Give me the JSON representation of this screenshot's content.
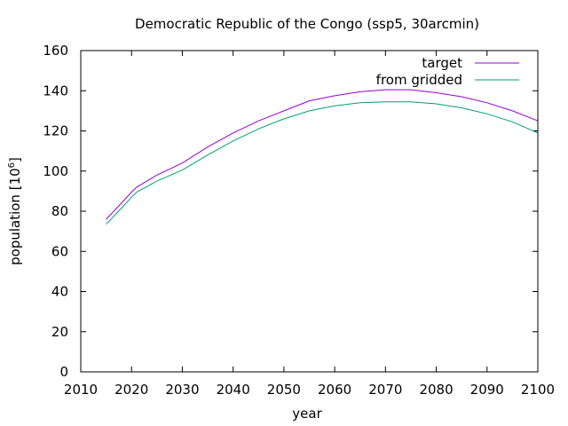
{
  "chart_data": {
    "type": "line",
    "title": "Democratic Republic of the Congo (ssp5, 30arcmin)",
    "xlabel": "year",
    "ylabel": "population [10",
    "ylabel_sup": "6",
    "ylabel_tail": "]",
    "xlim": [
      2010,
      2100
    ],
    "ylim": [
      0,
      160
    ],
    "xticks": [
      2010,
      2020,
      2030,
      2040,
      2050,
      2060,
      2070,
      2080,
      2090,
      2100
    ],
    "yticks": [
      0,
      20,
      40,
      60,
      80,
      100,
      120,
      140,
      160
    ],
    "grid": false,
    "legend": "top-right",
    "series": [
      {
        "name": "target",
        "color": "#9400d3",
        "x": [
          2015,
          2018,
          2020,
          2021,
          2025,
          2030,
          2035,
          2040,
          2045,
          2050,
          2055,
          2060,
          2065,
          2070,
          2075,
          2080,
          2085,
          2090,
          2095,
          2100
        ],
        "y": [
          76,
          84,
          89.5,
          92,
          98,
          104,
          112,
          119,
          125,
          130,
          135,
          137.5,
          139.5,
          140.5,
          140.5,
          139,
          137,
          134,
          130,
          125
        ]
      },
      {
        "name": "from gridded",
        "color": "#009e73",
        "x": [
          2015,
          2018,
          2020,
          2021,
          2025,
          2030,
          2035,
          2040,
          2045,
          2050,
          2055,
          2060,
          2065,
          2070,
          2075,
          2080,
          2085,
          2090,
          2095,
          2100
        ],
        "y": [
          73.5,
          81.5,
          87,
          89.5,
          95,
          100.5,
          108,
          115,
          121,
          126,
          130,
          132.5,
          134,
          134.5,
          134.5,
          133.5,
          131.5,
          128.5,
          124.5,
          119
        ]
      }
    ]
  }
}
